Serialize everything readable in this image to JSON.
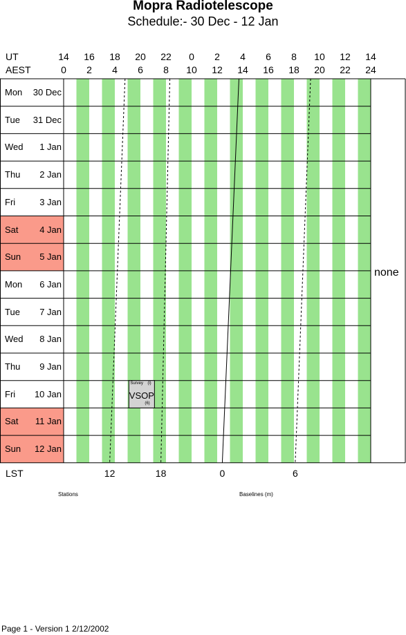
{
  "title": "Mopra Radiotelescope",
  "subtitle": "Schedule:- 30 Dec - 12 Jan",
  "axes": {
    "ut_label": "UT",
    "aest_label": "AEST",
    "lst_label": "LST",
    "ut_ticks": [
      "14",
      "16",
      "18",
      "20",
      "22",
      "0",
      "2",
      "4",
      "6",
      "8",
      "10",
      "12",
      "14"
    ],
    "aest_ticks": [
      "0",
      "2",
      "4",
      "6",
      "8",
      "10",
      "12",
      "14",
      "16",
      "18",
      "20",
      "22",
      "24"
    ],
    "lst_ticks": [
      "12",
      "18",
      "0",
      "6"
    ]
  },
  "days": [
    {
      "weekday": "Mon",
      "date": "30 Dec",
      "weekend": false
    },
    {
      "weekday": "Tue",
      "date": "31 Dec",
      "weekend": false
    },
    {
      "weekday": "Wed",
      "date": "1 Jan",
      "weekend": false
    },
    {
      "weekday": "Thu",
      "date": "2 Jan",
      "weekend": false
    },
    {
      "weekday": "Fri",
      "date": "3 Jan",
      "weekend": false
    },
    {
      "weekday": "Sat",
      "date": "4 Jan",
      "weekend": true
    },
    {
      "weekday": "Sun",
      "date": "5 Jan",
      "weekend": true
    },
    {
      "weekday": "Mon",
      "date": "6 Jan",
      "weekend": false
    },
    {
      "weekday": "Tue",
      "date": "7 Jan",
      "weekend": false
    },
    {
      "weekday": "Wed",
      "date": "8 Jan",
      "weekend": false
    },
    {
      "weekday": "Thu",
      "date": "9 Jan",
      "weekend": false
    },
    {
      "weekday": "Fri",
      "date": "10 Jan",
      "weekend": false
    },
    {
      "weekday": "Sat",
      "date": "11 Jan",
      "weekend": true
    },
    {
      "weekday": "Sun",
      "date": "12 Jan",
      "weekend": true
    }
  ],
  "blocks": [
    {
      "day_index": 11,
      "start_aest": 5.1,
      "end_aest": 7.1,
      "title": "VSOP",
      "tag": "Survey",
      "corner_top": "(l)",
      "corner_bottom": "(6)"
    }
  ],
  "side_label": "none",
  "stations_label": "Stations",
  "baselines_label": "Baselines (m)",
  "footer": "Page 1 - Version 1  2/12/2002",
  "colors": {
    "stripe": "#99e38e",
    "weekend": "#fa9a8a",
    "block": "#d3d3d3"
  }
}
